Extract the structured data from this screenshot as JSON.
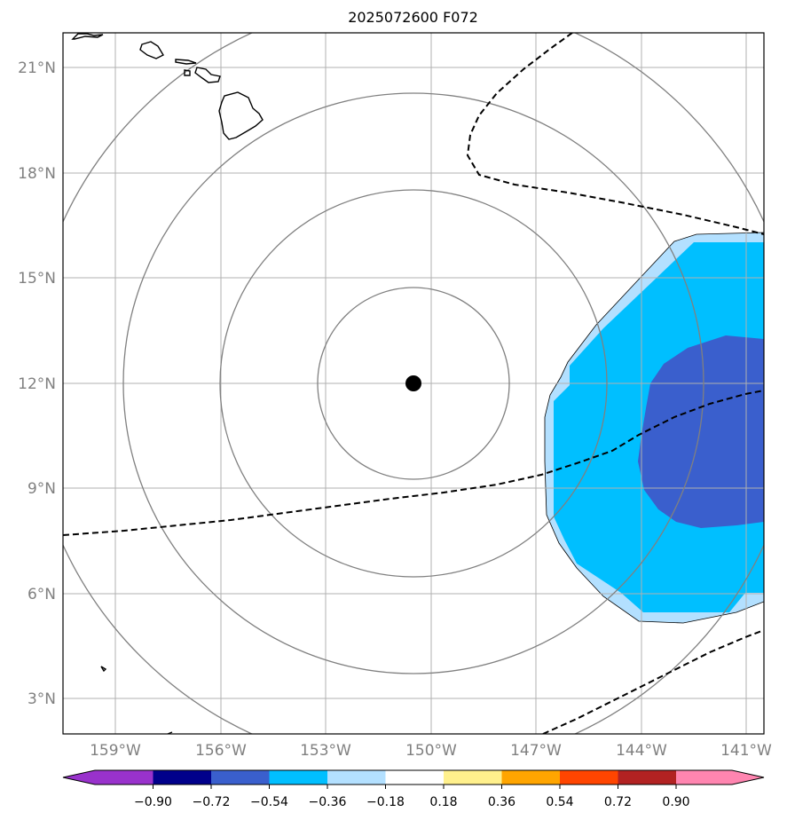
{
  "title": "2025072600 F072",
  "map": {
    "lat_labels": [
      "21°N",
      "18°N",
      "15°N",
      "12°N",
      "9°N",
      "6°N",
      "3°N"
    ],
    "lon_labels": [
      "159°W",
      "156°W",
      "153°W",
      "150°W",
      "147°W",
      "144°W",
      "141°W"
    ],
    "center": {
      "lat": 12.0,
      "lon": -150.5
    },
    "range_rings": 4,
    "gridlines": true,
    "colors": {
      "fill_light": "#b3e0ff",
      "fill_mid": "#00bfff",
      "fill_dark": "#3a5fcd",
      "ring": "#808080",
      "grid": "#b0b0b0"
    }
  },
  "colorbar": {
    "tick_labels": [
      "−0.90",
      "−0.72",
      "−0.54",
      "−0.36",
      "−0.18",
      "0.18",
      "0.36",
      "0.54",
      "0.72",
      "0.90"
    ],
    "colors": [
      "#9932cc",
      "#00008b",
      "#3a5fcd",
      "#00bfff",
      "#b3e0ff",
      "#ffffff",
      "#fff08c",
      "#ffa500",
      "#ff4500",
      "#b22222",
      "#ff85b0"
    ]
  }
}
